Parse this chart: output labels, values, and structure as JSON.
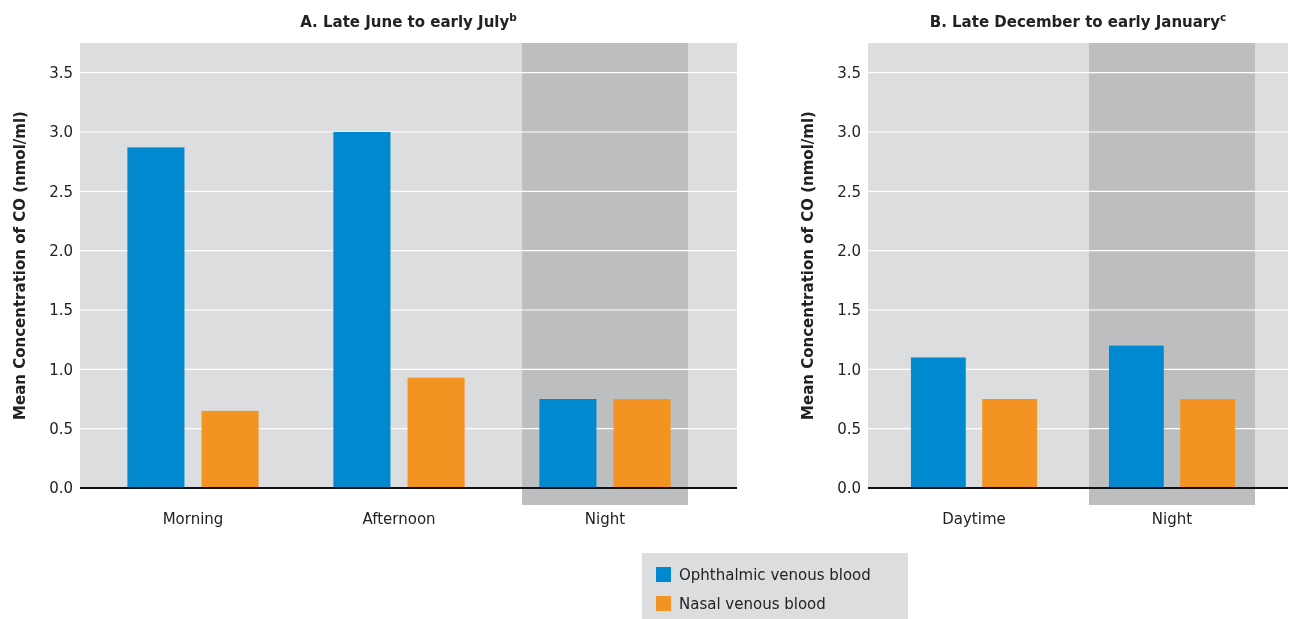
{
  "chart_data": [
    {
      "type": "bar",
      "title": "A. Late June to early July$^{b}$",
      "ylabel": "Mean Concentration of CO (nmol/ml)",
      "categories": [
        "Morning",
        "Afternoon",
        "Night"
      ],
      "series": [
        {
          "name": "Ophthalmic venous blood",
          "color": "#0089cf",
          "values": [
            2.87,
            3.0,
            0.75
          ]
        },
        {
          "name": "Nasal venous blood",
          "color": "#f39322",
          "values": [
            0.65,
            0.93,
            0.75
          ]
        }
      ],
      "ylim": [
        0,
        3.75
      ],
      "yticks": [
        {
          "value": 0,
          "label": "0.0"
        },
        0.5,
        {
          "value": 1,
          "label": "1.0"
        },
        1.5,
        {
          "value": 2,
          "label": "2.0"
        },
        2.5,
        {
          "value": 3,
          "label": "3.0"
        },
        3.5
      ],
      "grid": "y",
      "legend": "bottom right",
      "bands": [
        {
          "axis": "x",
          "from": "Night",
          "to": "Night",
          "label": null,
          "color": "#bdbec0"
        }
      ]
    },
    {
      "type": "bar",
      "title": "B. Late December to early January$^{c}$",
      "ylabel": "Mean Concentration of CO (nmol/ml)",
      "categories": [
        "Daytime",
        "Night"
      ],
      "series": [
        {
          "color": "#0089cf",
          "values": [
            1.1,
            1.2
          ]
        },
        {
          "color": "#f39322",
          "values": [
            0.75,
            0.75
          ]
        }
      ],
      "ylim": [
        0,
        3.75
      ],
      "yticks": [
        {
          "value": 0,
          "label": "0.0"
        },
        0.5,
        {
          "value": 1,
          "label": "1.0"
        },
        1.5,
        {
          "value": 2,
          "label": "2.0"
        },
        2.5,
        {
          "value": 3,
          "label": "3.0"
        },
        3.5
      ],
      "grid": "y",
      "bands": [
        {
          "axis": "x",
          "from": "Night",
          "to": "Night",
          "label": null,
          "color": "#bdbec0"
        }
      ]
    }
  ]
}
